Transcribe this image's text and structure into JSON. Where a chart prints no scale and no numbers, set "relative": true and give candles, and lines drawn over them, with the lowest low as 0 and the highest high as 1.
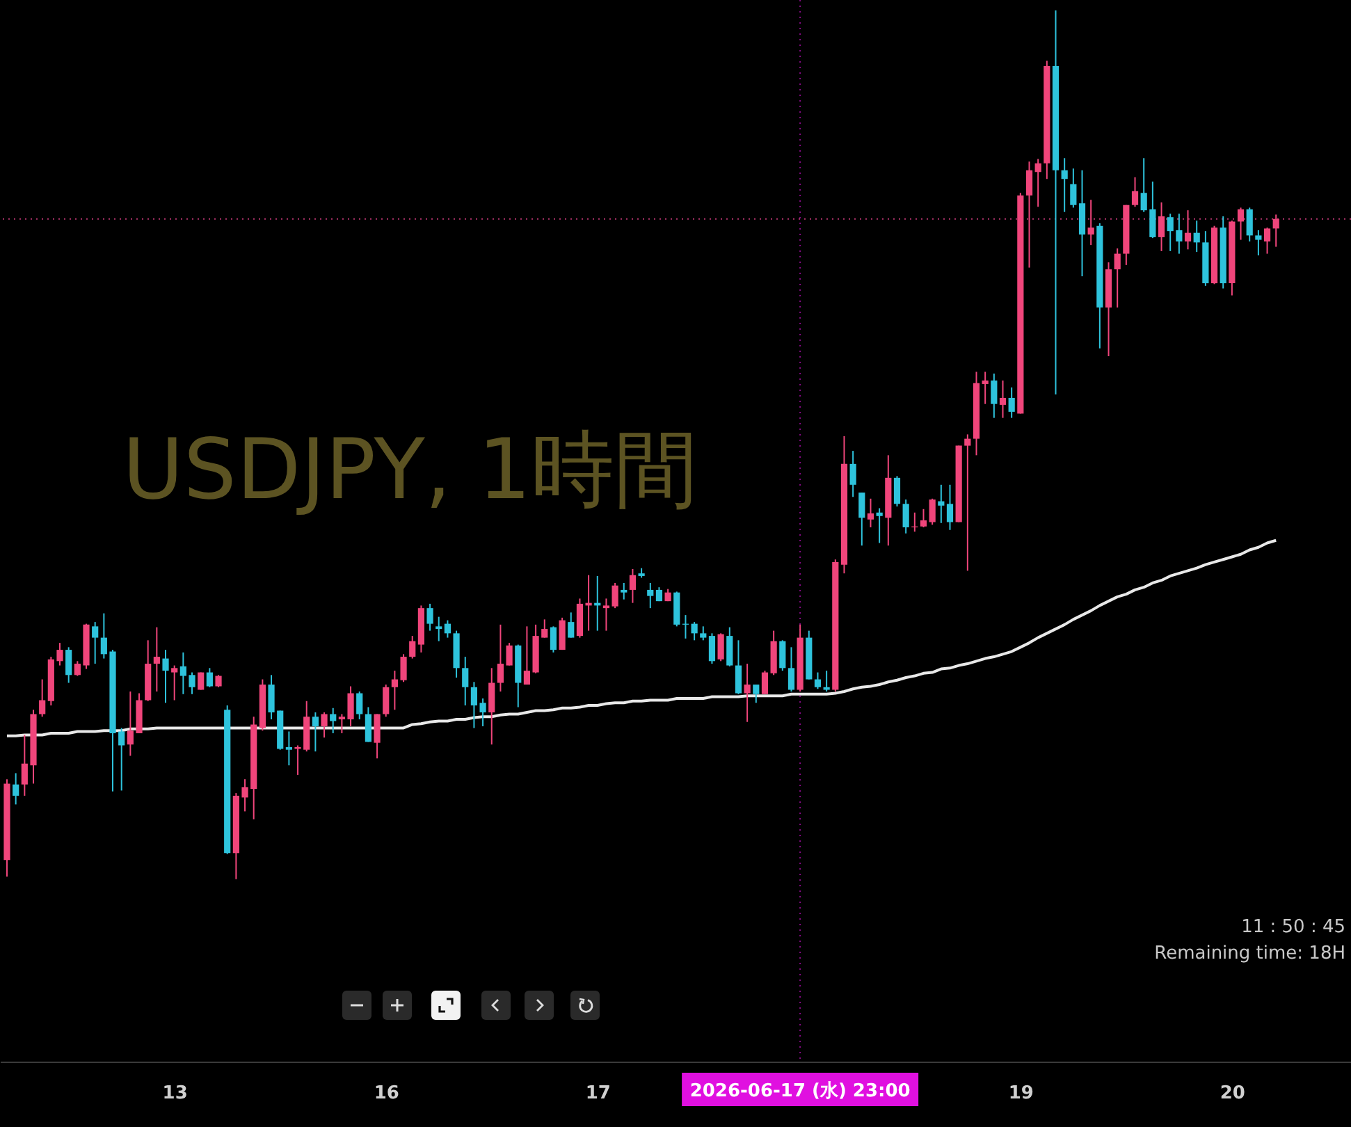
{
  "chart_data": {
    "type": "candlestick",
    "title": "USDJPY, 1時間",
    "relative": true,
    "annotations": [
      "11 : 50 : 45",
      "Remaining time: 18H"
    ],
    "colors": [
      "#f0457b",
      "#2ec3dc",
      "#f0457b",
      "#f0457b",
      "#f0457b",
      "#f0457b",
      "#f0457b",
      "#2ec3dc",
      "#f0457b",
      "#f0457b",
      "#2ec3dc",
      "#2ec3dc",
      "#2ec3dc",
      "#2ec3dc",
      "#f0457b",
      "#f0457b",
      "#f0457b",
      "#f0457b",
      "#2ec3dc",
      "#f0457b",
      "#2ec3dc",
      "#2ec3dc",
      "#f0457b",
      "#2ec3dc",
      "#f0457b",
      "#2ec3dc",
      "#f0457b",
      "#f0457b",
      "#f0457b",
      "#f0457b",
      "#2ec3dc",
      "#2ec3dc",
      "#2ec3dc",
      "#f0457b",
      "#f0457b",
      "#2ec3dc",
      "#f0457b",
      "#2ec3dc",
      "#f0457b",
      "#f0457b",
      "#2ec3dc",
      "#2ec3dc",
      "#f0457b",
      "#f0457b",
      "#f0457b",
      "#f0457b",
      "#f0457b",
      "#f0457b",
      "#2ec3dc",
      "#2ec3dc",
      "#2ec3dc",
      "#2ec3dc",
      "#2ec3dc",
      "#2ec3dc",
      "#2ec3dc",
      "#f0457b",
      "#f0457b",
      "#f0457b",
      "#2ec3dc",
      "#f0457b",
      "#f0457b",
      "#f0457b",
      "#2ec3dc",
      "#f0457b",
      "#2ec3dc",
      "#f0457b",
      "#f0457b",
      "#2ec3dc",
      "#f0457b",
      "#f0457b",
      "#2ec3dc",
      "#f0457b",
      "#2ec3dc",
      "#2ec3dc",
      "#2ec3dc",
      "#f0457b",
      "#2ec3dc",
      "#2ec3dc",
      "#2ec3dc",
      "#2ec3dc",
      "#2ec3dc",
      "#f0457b",
      "#2ec3dc",
      "#2ec3dc",
      "#f0457b",
      "#2ec3dc",
      "#f0457b",
      "#f0457b",
      "#2ec3dc",
      "#2ec3dc",
      "#f0457b",
      "#2ec3dc",
      "#2ec3dc",
      "#2ec3dc",
      "#f0457b",
      "#f0457b",
      "#2ec3dc",
      "#2ec3dc",
      "#f0457b",
      "#2ec3dc",
      "#f0457b",
      "#2ec3dc",
      "#2ec3dc",
      "#f0457b",
      "#f0457b",
      "#f0457b",
      "#2ec3dc",
      "#2ec3dc",
      "#f0457b",
      "#f0457b",
      "#f0457b",
      "#f0457b",
      "#2ec3dc",
      "#f0457b",
      "#2ec3dc",
      "#f0457b",
      "#f0457b",
      "#f0457b",
      "#f0457b",
      "#2ec3dc",
      "#2ec3dc",
      "#2ec3dc",
      "#2ec3dc",
      "#f0457b",
      "#2ec3dc",
      "#f0457b",
      "#f0457b",
      "#f0457b",
      "#f0457b",
      "#2ec3dc",
      "#2ec3dc",
      "#f0457b",
      "#2ec3dc",
      "#2ec3dc",
      "#f0457b",
      "#2ec3dc",
      "#2ec3dc",
      "#f0457b",
      "#2ec3dc",
      "#f0457b",
      "#f0457b",
      "#2ec3dc",
      "#2ec3dc",
      "#f0457b",
      "#f0457b"
    ],
    "categories": [
      null,
      null,
      null,
      null,
      null,
      null,
      null,
      null,
      null,
      null,
      null,
      null,
      null,
      null,
      null,
      null,
      null,
      null,
      null,
      "13",
      null,
      null,
      null,
      null,
      null,
      null,
      null,
      null,
      null,
      null,
      null,
      null,
      null,
      null,
      null,
      null,
      null,
      null,
      null,
      null,
      null,
      null,
      null,
      "16",
      null,
      null,
      null,
      null,
      null,
      null,
      null,
      null,
      null,
      null,
      null,
      null,
      null,
      null,
      null,
      null,
      null,
      null,
      null,
      null,
      null,
      null,
      null,
      "17",
      null,
      null,
      null,
      null,
      null,
      null,
      null,
      null,
      null,
      null,
      null,
      null,
      null,
      null,
      null,
      null,
      null,
      null,
      null,
      null,
      null,
      null,
      "2026-06-17 (水)   23:00",
      null,
      null,
      null,
      null,
      null,
      null,
      null,
      null,
      null,
      null,
      null,
      null,
      null,
      null,
      null,
      null,
      null,
      null,
      null,
      null,
      null,
      null,
      null,
      null,
      "19",
      null,
      null,
      null,
      null,
      null,
      null,
      null,
      null,
      null,
      null,
      null,
      null,
      null,
      null,
      null,
      null,
      null,
      null,
      null,
      null,
      null,
      null,
      null,
      "20",
      null,
      null,
      null,
      null,
      null
    ],
    "ohlc": [
      [
        0.022,
        0.115,
        0.003,
        0.11
      ],
      [
        0.109,
        0.122,
        0.086,
        0.096
      ],
      [
        0.109,
        0.166,
        0.096,
        0.133
      ],
      [
        0.131,
        0.195,
        0.11,
        0.19
      ],
      [
        0.19,
        0.23,
        0.187,
        0.206
      ],
      [
        0.205,
        0.256,
        0.2,
        0.253
      ],
      [
        0.251,
        0.272,
        0.246,
        0.264
      ],
      [
        0.264,
        0.267,
        0.226,
        0.235
      ],
      [
        0.235,
        0.251,
        0.234,
        0.248
      ],
      [
        0.246,
        0.294,
        0.242,
        0.293
      ],
      [
        0.291,
        0.296,
        0.248,
        0.278
      ],
      [
        0.278,
        0.306,
        0.254,
        0.259
      ],
      [
        0.262,
        0.264,
        0.101,
        0.168
      ],
      [
        0.17,
        0.174,
        0.102,
        0.154
      ],
      [
        0.155,
        0.216,
        0.142,
        0.171
      ],
      [
        0.168,
        0.214,
        0.168,
        0.206
      ],
      [
        0.206,
        0.275,
        0.205,
        0.248
      ],
      [
        0.248,
        0.29,
        0.216,
        0.256
      ],
      [
        0.254,
        0.264,
        0.203,
        0.24
      ],
      [
        0.238,
        0.246,
        0.206,
        0.243
      ],
      [
        0.245,
        0.261,
        0.213,
        0.234
      ],
      [
        0.235,
        0.238,
        0.213,
        0.221
      ],
      [
        0.218,
        0.238,
        0.218,
        0.238
      ],
      [
        0.238,
        0.243,
        0.221,
        0.222
      ],
      [
        0.222,
        0.235,
        0.221,
        0.234
      ],
      [
        0.195,
        0.2,
        0.029,
        0.03
      ],
      [
        0.03,
        0.099,
        0,
        0.096
      ],
      [
        0.094,
        0.115,
        0.078,
        0.106
      ],
      [
        0.104,
        0.187,
        0.069,
        0.178
      ],
      [
        0.174,
        0.23,
        0.171,
        0.224
      ],
      [
        0.224,
        0.235,
        0.184,
        0.192
      ],
      [
        0.194,
        0.194,
        0.149,
        0.15
      ],
      [
        0.152,
        0.17,
        0.131,
        0.149
      ],
      [
        0.15,
        0.154,
        0.12,
        0.152
      ],
      [
        0.149,
        0.205,
        0.147,
        0.187
      ],
      [
        0.187,
        0.192,
        0.147,
        0.176
      ],
      [
        0.176,
        0.192,
        0.163,
        0.19
      ],
      [
        0.19,
        0.197,
        0.168,
        0.182
      ],
      [
        0.184,
        0.19,
        0.168,
        0.187
      ],
      [
        0.184,
        0.222,
        0.176,
        0.214
      ],
      [
        0.214,
        0.216,
        0.184,
        0.19
      ],
      [
        0.19,
        0.198,
        0.158,
        0.158
      ],
      [
        0.157,
        0.19,
        0.139,
        0.19
      ],
      [
        0.19,
        0.224,
        0.187,
        0.221
      ],
      [
        0.221,
        0.24,
        0.195,
        0.23
      ],
      [
        0.229,
        0.259,
        0.227,
        0.256
      ],
      [
        0.256,
        0.28,
        0.254,
        0.274
      ],
      [
        0.27,
        0.315,
        0.261,
        0.312
      ],
      [
        0.312,
        0.317,
        0.286,
        0.294
      ],
      [
        0.291,
        0.302,
        0.274,
        0.288
      ],
      [
        0.294,
        0.298,
        0.278,
        0.283
      ],
      [
        0.283,
        0.286,
        0.232,
        0.243
      ],
      [
        0.243,
        0.256,
        0.2,
        0.221
      ],
      [
        0.221,
        0.227,
        0.174,
        0.2
      ],
      [
        0.203,
        0.208,
        0.176,
        0.192
      ],
      [
        0.192,
        0.243,
        0.155,
        0.226
      ],
      [
        0.226,
        0.293,
        0.216,
        0.248
      ],
      [
        0.246,
        0.272,
        0.246,
        0.269
      ],
      [
        0.269,
        0.27,
        0.198,
        0.226
      ],
      [
        0.224,
        0.291,
        0.224,
        0.24
      ],
      [
        0.238,
        0.293,
        0.237,
        0.28
      ],
      [
        0.278,
        0.299,
        0.278,
        0.288
      ],
      [
        0.29,
        0.291,
        0.261,
        0.264
      ],
      [
        0.264,
        0.301,
        0.264,
        0.298
      ],
      [
        0.296,
        0.307,
        0.278,
        0.278
      ],
      [
        0.28,
        0.323,
        0.278,
        0.317
      ],
      [
        0.315,
        0.35,
        0.286,
        0.318
      ],
      [
        0.318,
        0.349,
        0.286,
        0.315
      ],
      [
        0.312,
        0.323,
        0.286,
        0.315
      ],
      [
        0.314,
        0.341,
        0.312,
        0.338
      ],
      [
        0.333,
        0.341,
        0.322,
        0.33
      ],
      [
        0.333,
        0.357,
        0.318,
        0.35
      ],
      [
        0.352,
        0.358,
        0.347,
        0.349
      ],
      [
        0.333,
        0.341,
        0.312,
        0.326
      ],
      [
        0.333,
        0.336,
        0.32,
        0.32
      ],
      [
        0.32,
        0.334,
        0.32,
        0.33
      ],
      [
        0.33,
        0.331,
        0.291,
        0.293
      ],
      [
        0.294,
        0.304,
        0.277,
        0.293
      ],
      [
        0.294,
        0.296,
        0.275,
        0.283
      ],
      [
        0.283,
        0.291,
        0.275,
        0.278
      ],
      [
        0.28,
        0.283,
        0.248,
        0.251
      ],
      [
        0.253,
        0.283,
        0.251,
        0.282
      ],
      [
        0.28,
        0.29,
        0.245,
        0.246
      ],
      [
        0.246,
        0.275,
        0.213,
        0.214
      ],
      [
        0.214,
        0.248,
        0.181,
        0.224
      ],
      [
        0.224,
        0.224,
        0.203,
        0.213
      ],
      [
        0.213,
        0.24,
        0.213,
        0.238
      ],
      [
        0.237,
        0.286,
        0.235,
        0.274
      ],
      [
        0.274,
        0.275,
        0.24,
        0.243
      ],
      [
        0.243,
        0.267,
        0.216,
        0.218
      ],
      [
        0.218,
        0.293,
        0.216,
        0.278
      ],
      [
        0.278,
        0.286,
        0.23,
        0.23
      ],
      [
        0.23,
        0.238,
        0.219,
        0.221
      ],
      [
        0.221,
        0.24,
        0.216,
        0.218
      ],
      [
        0.218,
        0.368,
        0.216,
        0.365
      ],
      [
        0.362,
        0.51,
        0.352,
        0.478
      ],
      [
        0.478,
        0.493,
        0.44,
        0.454
      ],
      [
        0.445,
        0.445,
        0.384,
        0.416
      ],
      [
        0.414,
        0.438,
        0.405,
        0.421
      ],
      [
        0.422,
        0.427,
        0.387,
        0.418
      ],
      [
        0.416,
        0.488,
        0.384,
        0.462
      ],
      [
        0.462,
        0.464,
        0.429,
        0.432
      ],
      [
        0.432,
        0.437,
        0.398,
        0.405
      ],
      [
        0.405,
        0.422,
        0.4,
        0.406
      ],
      [
        0.406,
        0.426,
        0.405,
        0.413
      ],
      [
        0.411,
        0.438,
        0.408,
        0.437
      ],
      [
        0.435,
        0.454,
        0.41,
        0.43
      ],
      [
        0.432,
        0.454,
        0.402,
        0.411
      ],
      [
        0.411,
        0.499,
        0.411,
        0.499
      ],
      [
        0.499,
        0.512,
        0.355,
        0.507
      ],
      [
        0.507,
        0.584,
        0.488,
        0.571
      ],
      [
        0.57,
        0.584,
        0.547,
        0.574
      ],
      [
        0.574,
        0.582,
        0.531,
        0.547
      ],
      [
        0.546,
        0.574,
        0.531,
        0.554
      ],
      [
        0.554,
        0.566,
        0.531,
        0.538
      ],
      [
        0.536,
        0.79,
        0.536,
        0.787
      ],
      [
        0.787,
        0.826,
        0.704,
        0.816
      ],
      [
        0.814,
        0.829,
        0.774,
        0.824
      ],
      [
        0.824,
        0.942,
        0.806,
        0.936
      ],
      [
        0.936,
        1,
        0.558,
        0.816
      ],
      [
        0.816,
        0.83,
        0.768,
        0.806
      ],
      [
        0.8,
        0.818,
        0.773,
        0.776
      ],
      [
        0.778,
        0.816,
        0.694,
        0.742
      ],
      [
        0.742,
        0.782,
        0.73,
        0.75
      ],
      [
        0.752,
        0.755,
        0.611,
        0.658
      ],
      [
        0.658,
        0.71,
        0.602,
        0.702
      ],
      [
        0.702,
        0.726,
        0.658,
        0.72
      ],
      [
        0.72,
        0.776,
        0.707,
        0.776
      ],
      [
        0.776,
        0.808,
        0.774,
        0.792
      ],
      [
        0.79,
        0.83,
        0.768,
        0.77
      ],
      [
        0.771,
        0.803,
        0.738,
        0.739
      ],
      [
        0.739,
        0.779,
        0.723,
        0.763
      ],
      [
        0.762,
        0.766,
        0.723,
        0.746
      ],
      [
        0.747,
        0.766,
        0.72,
        0.734
      ],
      [
        0.734,
        0.77,
        0.725,
        0.744
      ],
      [
        0.744,
        0.758,
        0.722,
        0.733
      ],
      [
        0.733,
        0.746,
        0.683,
        0.686
      ],
      [
        0.686,
        0.752,
        0.685,
        0.75
      ],
      [
        0.75,
        0.763,
        0.68,
        0.686
      ],
      [
        0.686,
        0.758,
        0.672,
        0.757
      ],
      [
        0.757,
        0.773,
        0.736,
        0.771
      ],
      [
        0.771,
        0.773,
        0.734,
        0.741
      ],
      [
        0.741,
        0.747,
        0.718,
        0.736
      ],
      [
        0.734,
        0.75,
        0.72,
        0.749
      ],
      [
        0.749,
        0.765,
        0.728,
        0.76
      ]
    ],
    "series": [
      {
        "type": "line",
        "color": "#e8e8e8",
        "values": [
          0.165,
          0.165,
          0.166,
          0.166,
          0.166,
          0.168,
          0.168,
          0.168,
          0.17,
          0.17,
          0.17,
          0.171,
          0.171,
          0.171,
          0.173,
          0.173,
          0.173,
          0.174,
          0.174,
          0.174,
          0.174,
          0.174,
          0.174,
          0.174,
          0.174,
          0.174,
          0.174,
          0.174,
          0.174,
          0.174,
          0.174,
          0.174,
          0.174,
          0.174,
          0.174,
          0.174,
          0.174,
          0.174,
          0.174,
          0.174,
          0.174,
          0.174,
          0.174,
          0.174,
          0.174,
          0.174,
          0.178,
          0.179,
          0.181,
          0.182,
          0.182,
          0.184,
          0.184,
          0.186,
          0.187,
          0.187,
          0.189,
          0.19,
          0.19,
          0.192,
          0.194,
          0.194,
          0.195,
          0.197,
          0.197,
          0.198,
          0.2,
          0.2,
          0.202,
          0.203,
          0.203,
          0.205,
          0.205,
          0.206,
          0.206,
          0.206,
          0.208,
          0.208,
          0.208,
          0.208,
          0.21,
          0.21,
          0.21,
          0.21,
          0.211,
          0.211,
          0.211,
          0.211,
          0.211,
          0.213,
          0.213,
          0.213,
          0.213,
          0.213,
          0.214,
          0.216,
          0.219,
          0.221,
          0.222,
          0.224,
          0.227,
          0.229,
          0.232,
          0.234,
          0.237,
          0.238,
          0.242,
          0.243,
          0.246,
          0.248,
          0.251,
          0.254,
          0.256,
          0.259,
          0.262,
          0.267,
          0.272,
          0.278,
          0.283,
          0.288,
          0.293,
          0.299,
          0.304,
          0.309,
          0.315,
          0.32,
          0.325,
          0.328,
          0.333,
          0.336,
          0.341,
          0.344,
          0.349,
          0.352,
          0.355,
          0.358,
          0.362,
          0.365,
          0.368,
          0.371,
          0.374,
          0.379,
          0.382,
          0.387,
          0.39
        ]
      }
    ],
    "ref_lines": [
      {
        "axis": "y",
        "value": 0.76,
        "color": "#b4346e",
        "line_style": "dotted"
      },
      {
        "axis": "x",
        "value": "2026-06-17 (水)   23:00",
        "color": "#e010e0",
        "line_style": "dotted"
      }
    ]
  }
}
